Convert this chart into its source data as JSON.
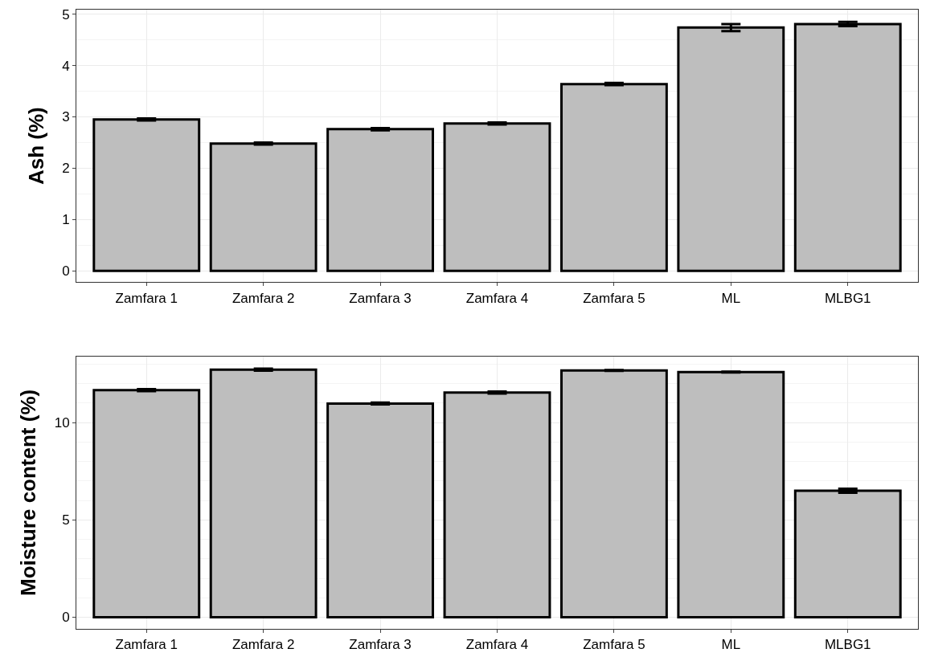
{
  "chart_data": [
    {
      "type": "bar",
      "ylabel": "Ash (%)",
      "categories": [
        "Zamfara 1",
        "Zamfara 2",
        "Zamfara 3",
        "Zamfara 4",
        "Zamfara 5",
        "ML",
        "MLBG1"
      ],
      "values": [
        2.95,
        2.48,
        2.76,
        2.87,
        3.64,
        4.74,
        4.81
      ],
      "errors": [
        0.02,
        0.02,
        0.02,
        0.02,
        0.02,
        0.07,
        0.04
      ],
      "color": "#bebebe",
      "ylim": [
        -0.22,
        5.09
      ],
      "yticks": [
        0,
        1,
        2,
        3,
        4,
        5
      ],
      "grid": true
    },
    {
      "type": "bar",
      "ylabel": "Moisture content (%)",
      "categories": [
        "Zamfara 1",
        "Zamfara 2",
        "Zamfara 3",
        "Zamfara 4",
        "Zamfara 5",
        "ML",
        "MLBG1"
      ],
      "values": [
        11.67,
        12.72,
        10.98,
        11.54,
        12.68,
        12.6,
        6.5
      ],
      "errors": [
        0.05,
        0.05,
        0.05,
        0.05,
        0.02,
        0.02,
        0.1
      ],
      "color": "#bebebe",
      "ylim": [
        -0.6,
        13.4
      ],
      "yticks": [
        0,
        5,
        10
      ],
      "grid": true
    }
  ]
}
